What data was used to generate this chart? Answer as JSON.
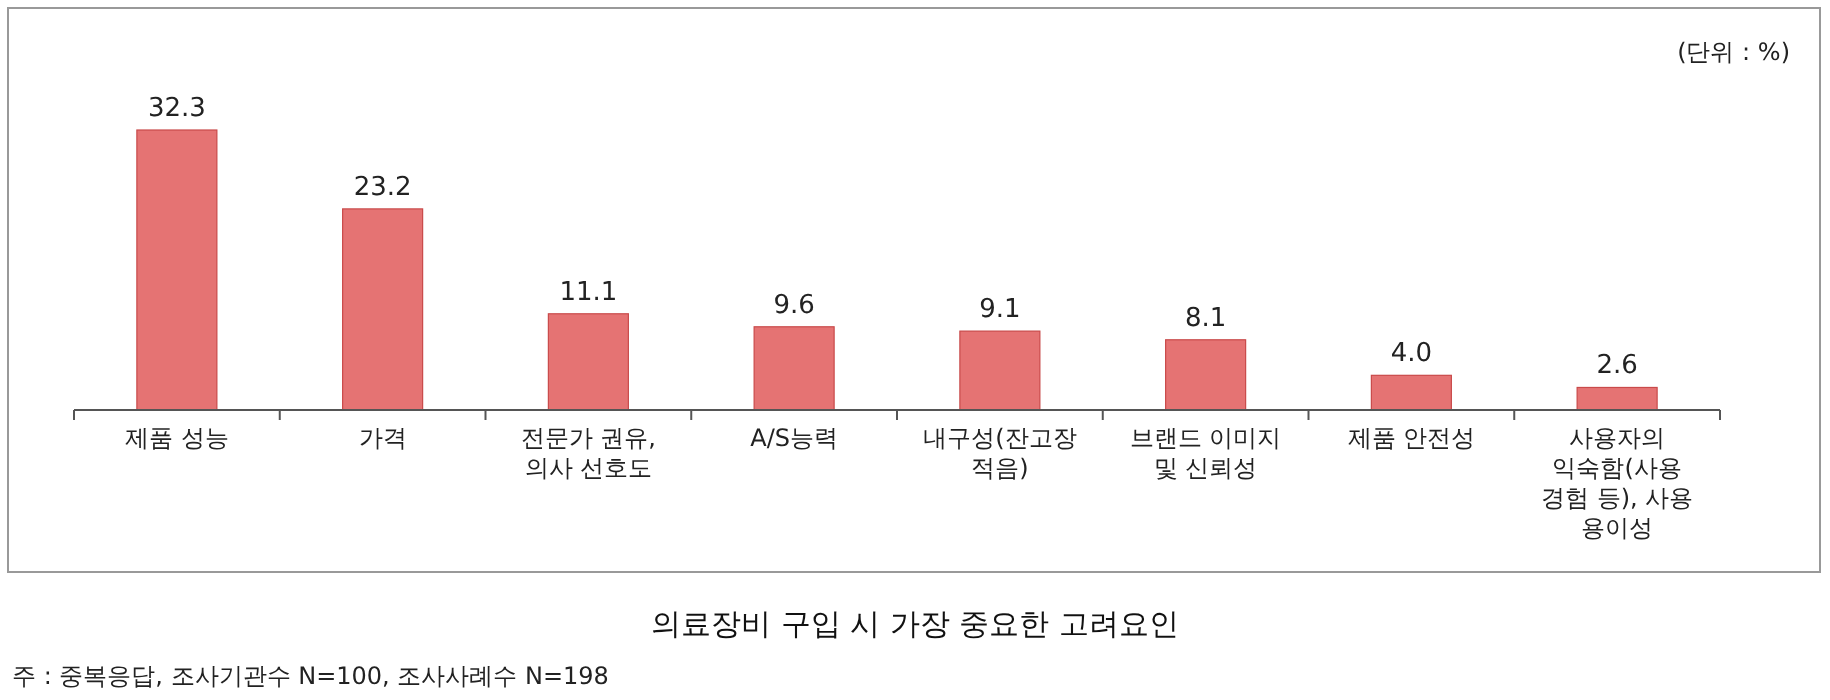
{
  "chart_data": {
    "type": "bar",
    "title": "의료장비 구입 시 가장 중요한 고려요인",
    "categories": [
      "제품 성능",
      "가격",
      "전문가 권유,\n의사 선호도",
      "A/S능력",
      "내구성(잔고장\n적음)",
      "브랜드 이미지\n및 신뢰성",
      "제품 안전성",
      "사용자의\n익숙함(사용\n경험 등), 사용\n용이성"
    ],
    "values": [
      32.3,
      23.2,
      11.1,
      9.6,
      9.1,
      8.1,
      4.0,
      2.6
    ],
    "color": "#e57373",
    "value_labels": [
      "32.3",
      "23.2",
      "11.1",
      "9.6",
      "9.1",
      "8.1",
      "4.0",
      "2.6"
    ],
    "annotations": [
      "(단위 : %)",
      "주 : 중복응답, 조사기관수 N=100, 조사사례수 N=198"
    ]
  }
}
